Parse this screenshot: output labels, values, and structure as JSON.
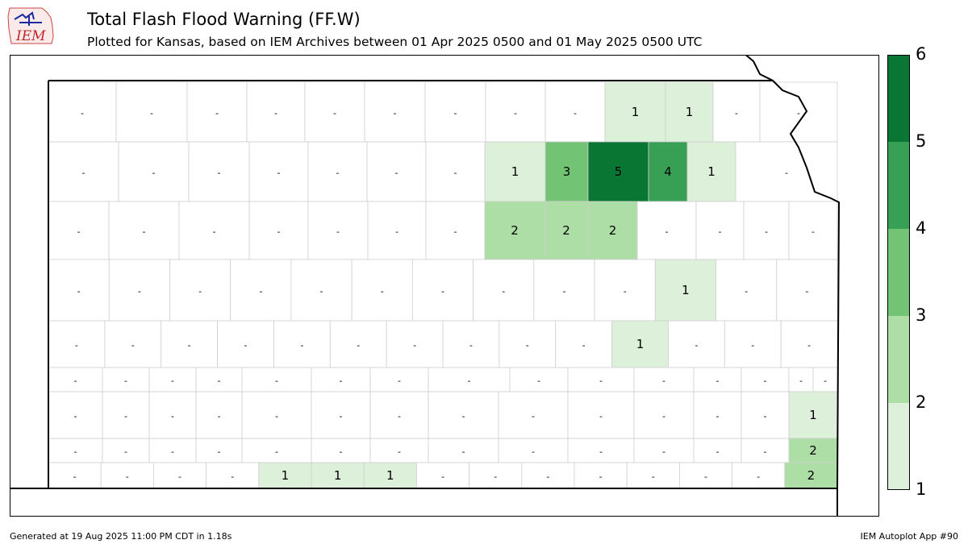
{
  "header": {
    "logo_text": "IEM",
    "title": "Total Flash Flood Warning (FF.W)",
    "subtitle": "Plotted for Kansas, based on IEM Archives  between 01 Apr 2025 0500 and 01 May 2025 0500 UTC"
  },
  "colorbar": {
    "ticks": [
      "1",
      "2",
      "3",
      "4",
      "5",
      "6"
    ],
    "colors": [
      "#ddf1da",
      "#addea6",
      "#73c375",
      "#38a055",
      "#0a7633"
    ]
  },
  "map": {
    "rows": [
      [
        "-",
        "-",
        "-",
        "-",
        "-",
        "-",
        "-",
        "-",
        "-",
        "1",
        "1",
        "-",
        "-"
      ],
      [
        "-",
        "-",
        "-",
        "-",
        "-",
        "-",
        "-",
        "1",
        "3",
        "5",
        "4",
        "1",
        "-"
      ],
      [
        "-",
        "-",
        "-",
        "-",
        "-",
        "-",
        "-",
        "2",
        "2",
        "2",
        "-",
        "-",
        "-",
        "-"
      ],
      [
        "-",
        "-",
        "-",
        "-",
        "-",
        "-",
        "-",
        "-",
        "-",
        "-",
        "1",
        "-",
        "-"
      ],
      [
        "-",
        "-",
        "-",
        "-",
        "-",
        "-",
        "-",
        "-",
        "-",
        "-",
        "1",
        "-",
        "-",
        "-"
      ],
      [
        "-",
        "-",
        "-",
        "-",
        "-",
        "-",
        "-",
        "-",
        "-",
        "-",
        "-",
        "-",
        "-",
        "-",
        "-"
      ],
      [
        "-",
        "-",
        "-",
        "-",
        "-",
        "-",
        "-",
        "-",
        "-",
        "-",
        "-",
        "-",
        "-",
        "1"
      ],
      [
        "-",
        "-",
        "-",
        "-",
        "-",
        "-",
        "-",
        "-",
        "-",
        "-",
        "-",
        "-",
        "-",
        "2"
      ],
      [
        "-",
        "-",
        "-",
        "-",
        "1",
        "1",
        "1",
        "-",
        "-",
        "-",
        "-",
        "-",
        "-",
        "-",
        "2"
      ]
    ]
  },
  "footer": {
    "left": "Generated at 19 Aug 2025 11:00 PM CDT in 1.18s",
    "right": "IEM Autoplot App #90"
  }
}
